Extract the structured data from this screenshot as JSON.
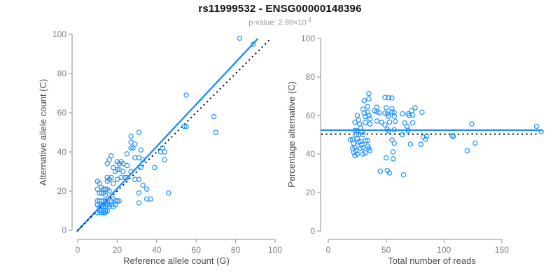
{
  "header": {
    "title": "rs11999532 - ENSG00000148396",
    "pvalue_text": "p-value: 2.98×10",
    "pvalue_exponent": "-3"
  },
  "colors": {
    "accent": "#1E90FF",
    "axis_line": "#8c8c8c",
    "tick_label": "#7f7f7f",
    "axis_title": "#4a4a4a",
    "identity_line": "#000000",
    "background": "#ffffff"
  },
  "chart_data": [
    {
      "type": "scatter",
      "name": "allele-counts-scatter",
      "xlabel": "Reference allele count (G)",
      "ylabel": "Alternative allele count (C)",
      "xlim": [
        0,
        100
      ],
      "ylim": [
        0,
        100
      ],
      "xticks": [
        0,
        20,
        40,
        60,
        80,
        100
      ],
      "yticks": [
        0,
        20,
        40,
        60,
        80,
        100
      ],
      "grid": false,
      "legend": "none",
      "points": [
        [
          82,
          98
        ],
        [
          89,
          95
        ],
        [
          55,
          69
        ],
        [
          69,
          58
        ],
        [
          54,
          53
        ],
        [
          55,
          53
        ],
        [
          70,
          50
        ],
        [
          31,
          50
        ],
        [
          27,
          48
        ],
        [
          27,
          45
        ],
        [
          29,
          44
        ],
        [
          43,
          42
        ],
        [
          27,
          42
        ],
        [
          28,
          42
        ],
        [
          32,
          41
        ],
        [
          42,
          40
        ],
        [
          44,
          40
        ],
        [
          25,
          39
        ],
        [
          17,
          38
        ],
        [
          29,
          37
        ],
        [
          31,
          37
        ],
        [
          44,
          36
        ],
        [
          16,
          36
        ],
        [
          33,
          36
        ],
        [
          20,
          35
        ],
        [
          22,
          35
        ],
        [
          21,
          34
        ],
        [
          23,
          34
        ],
        [
          15,
          34
        ],
        [
          25,
          33
        ],
        [
          39,
          32
        ],
        [
          18,
          32
        ],
        [
          32,
          32
        ],
        [
          20,
          31
        ],
        [
          21,
          31
        ],
        [
          23,
          30
        ],
        [
          19,
          30
        ],
        [
          27,
          30
        ],
        [
          29,
          26
        ],
        [
          31,
          26
        ],
        [
          24,
          27
        ],
        [
          25,
          27
        ],
        [
          20,
          26
        ],
        [
          22,
          27
        ],
        [
          15,
          27
        ],
        [
          17,
          27
        ],
        [
          10,
          25
        ],
        [
          11,
          24
        ],
        [
          15,
          25
        ],
        [
          16,
          26
        ],
        [
          18,
          24
        ],
        [
          33,
          23
        ],
        [
          35,
          21
        ],
        [
          31,
          19
        ],
        [
          46,
          19
        ],
        [
          35,
          16
        ],
        [
          37,
          16
        ],
        [
          31,
          14
        ],
        [
          12,
          22
        ],
        [
          13,
          21
        ],
        [
          14,
          21
        ],
        [
          15,
          21
        ],
        [
          16,
          20
        ],
        [
          10,
          21
        ],
        [
          12,
          19
        ],
        [
          13,
          19
        ],
        [
          14,
          18
        ],
        [
          11,
          19
        ],
        [
          10,
          15
        ],
        [
          11,
          15
        ],
        [
          12,
          15
        ],
        [
          13,
          15
        ],
        [
          14,
          15
        ],
        [
          15,
          15
        ],
        [
          17,
          15
        ],
        [
          18,
          16
        ],
        [
          19,
          15
        ],
        [
          20,
          15
        ],
        [
          21,
          15
        ],
        [
          11,
          12
        ],
        [
          12,
          12
        ],
        [
          13,
          12
        ],
        [
          14,
          12
        ],
        [
          15,
          13
        ],
        [
          16,
          12
        ],
        [
          17,
          13
        ],
        [
          18,
          12
        ],
        [
          12,
          13
        ],
        [
          13,
          13
        ],
        [
          10,
          13
        ],
        [
          12,
          10
        ],
        [
          13,
          10
        ],
        [
          14,
          10
        ],
        [
          15,
          10
        ],
        [
          12,
          9
        ],
        [
          13,
          9
        ],
        [
          11,
          10
        ],
        [
          14,
          9
        ],
        [
          16,
          13
        ],
        [
          19,
          13
        ],
        [
          10,
          9
        ]
      ],
      "lines": [
        {
          "name": "regression-line",
          "style": "solid",
          "color": "#1E90FF",
          "from": [
            -0.3,
            -0.5
          ],
          "to": [
            91,
            97.5
          ]
        },
        {
          "name": "identity-line",
          "style": "dotted",
          "color": "#000000",
          "from": [
            0,
            0
          ],
          "to": [
            97.5,
            97.5
          ]
        }
      ]
    },
    {
      "type": "scatter",
      "name": "percentage-vs-reads-scatter",
      "xlabel": "Total number of reads",
      "ylabel": "Percentage alternative (C)",
      "xlim": [
        0,
        186
      ],
      "ylim": [
        0,
        100
      ],
      "xticks": [
        0,
        50,
        100,
        150
      ],
      "yticks": [
        0,
        20,
        40,
        60,
        80,
        100
      ],
      "grid": false,
      "legend": "none",
      "points": [
        [
          180,
          54.4
        ],
        [
          184,
          51.6
        ],
        [
          124,
          55.6
        ],
        [
          127,
          45.7
        ],
        [
          107,
          49.5
        ],
        [
          108,
          49.1
        ],
        [
          120,
          41.7
        ],
        [
          81,
          61.7
        ],
        [
          75,
          64.0
        ],
        [
          72,
          62.5
        ],
        [
          73,
          60.3
        ],
        [
          85,
          49.4
        ],
        [
          69,
          60.9
        ],
        [
          70,
          60.0
        ],
        [
          73,
          56.2
        ],
        [
          82,
          48.8
        ],
        [
          84,
          47.6
        ],
        [
          64,
          60.9
        ],
        [
          55,
          69.1
        ],
        [
          66,
          56.1
        ],
        [
          68,
          54.4
        ],
        [
          80,
          45.0
        ],
        [
          52,
          69.2
        ],
        [
          69,
          52.2
        ],
        [
          55,
          63.6
        ],
        [
          57,
          61.4
        ],
        [
          55,
          61.8
        ],
        [
          57,
          59.6
        ],
        [
          49,
          69.4
        ],
        [
          58,
          56.9
        ],
        [
          71,
          45.1
        ],
        [
          50,
          64.0
        ],
        [
          64,
          50.0
        ],
        [
          51,
          60.8
        ],
        [
          52,
          59.6
        ],
        [
          53,
          56.6
        ],
        [
          49,
          61.2
        ],
        [
          57,
          52.6
        ],
        [
          55,
          47.3
        ],
        [
          57,
          45.6
        ],
        [
          51,
          52.9
        ],
        [
          52,
          51.9
        ],
        [
          46,
          56.5
        ],
        [
          49,
          55.1
        ],
        [
          42,
          64.3
        ],
        [
          44,
          61.4
        ],
        [
          35,
          71.4
        ],
        [
          35,
          68.6
        ],
        [
          40,
          62.5
        ],
        [
          42,
          61.9
        ],
        [
          42,
          57.1
        ],
        [
          56,
          41.1
        ],
        [
          56,
          37.5
        ],
        [
          50,
          38.0
        ],
        [
          65,
          29.2
        ],
        [
          51,
          31.4
        ],
        [
          53,
          30.2
        ],
        [
          45,
          31.1
        ],
        [
          34,
          64.7
        ],
        [
          34,
          61.8
        ],
        [
          35,
          60.0
        ],
        [
          36,
          58.3
        ],
        [
          36,
          55.6
        ],
        [
          31,
          67.7
        ],
        [
          31,
          61.3
        ],
        [
          32,
          59.4
        ],
        [
          32,
          56.3
        ],
        [
          30,
          63.3
        ],
        [
          25,
          60.0
        ],
        [
          26,
          57.7
        ],
        [
          27,
          55.6
        ],
        [
          28,
          53.6
        ],
        [
          29,
          51.7
        ],
        [
          30,
          50.0
        ],
        [
          32,
          46.9
        ],
        [
          34,
          47.1
        ],
        [
          34,
          44.1
        ],
        [
          35,
          42.9
        ],
        [
          36,
          41.7
        ],
        [
          23,
          52.2
        ],
        [
          24,
          50.0
        ],
        [
          25,
          48.0
        ],
        [
          26,
          46.2
        ],
        [
          28,
          46.4
        ],
        [
          28,
          42.9
        ],
        [
          30,
          43.3
        ],
        [
          30,
          40.0
        ],
        [
          25,
          52.0
        ],
        [
          26,
          50.0
        ],
        [
          23,
          56.5
        ],
        [
          22,
          45.5
        ],
        [
          23,
          43.5
        ],
        [
          24,
          41.7
        ],
        [
          25,
          40.0
        ],
        [
          21,
          42.9
        ],
        [
          22,
          40.9
        ],
        [
          21,
          47.6
        ],
        [
          23,
          39.1
        ],
        [
          29,
          44.8
        ],
        [
          32,
          40.6
        ],
        [
          19,
          47.4
        ]
      ],
      "lines": [
        {
          "name": "mean-percentage-line",
          "style": "solid",
          "color": "#1E90FF",
          "from": [
            -6,
            52.4
          ],
          "to": [
            185,
            52.4
          ]
        },
        {
          "name": "fifty-percent-line",
          "style": "dotted",
          "color": "#000000",
          "from": [
            -6,
            50.3
          ],
          "to": [
            180,
            50.3
          ]
        }
      ]
    }
  ]
}
